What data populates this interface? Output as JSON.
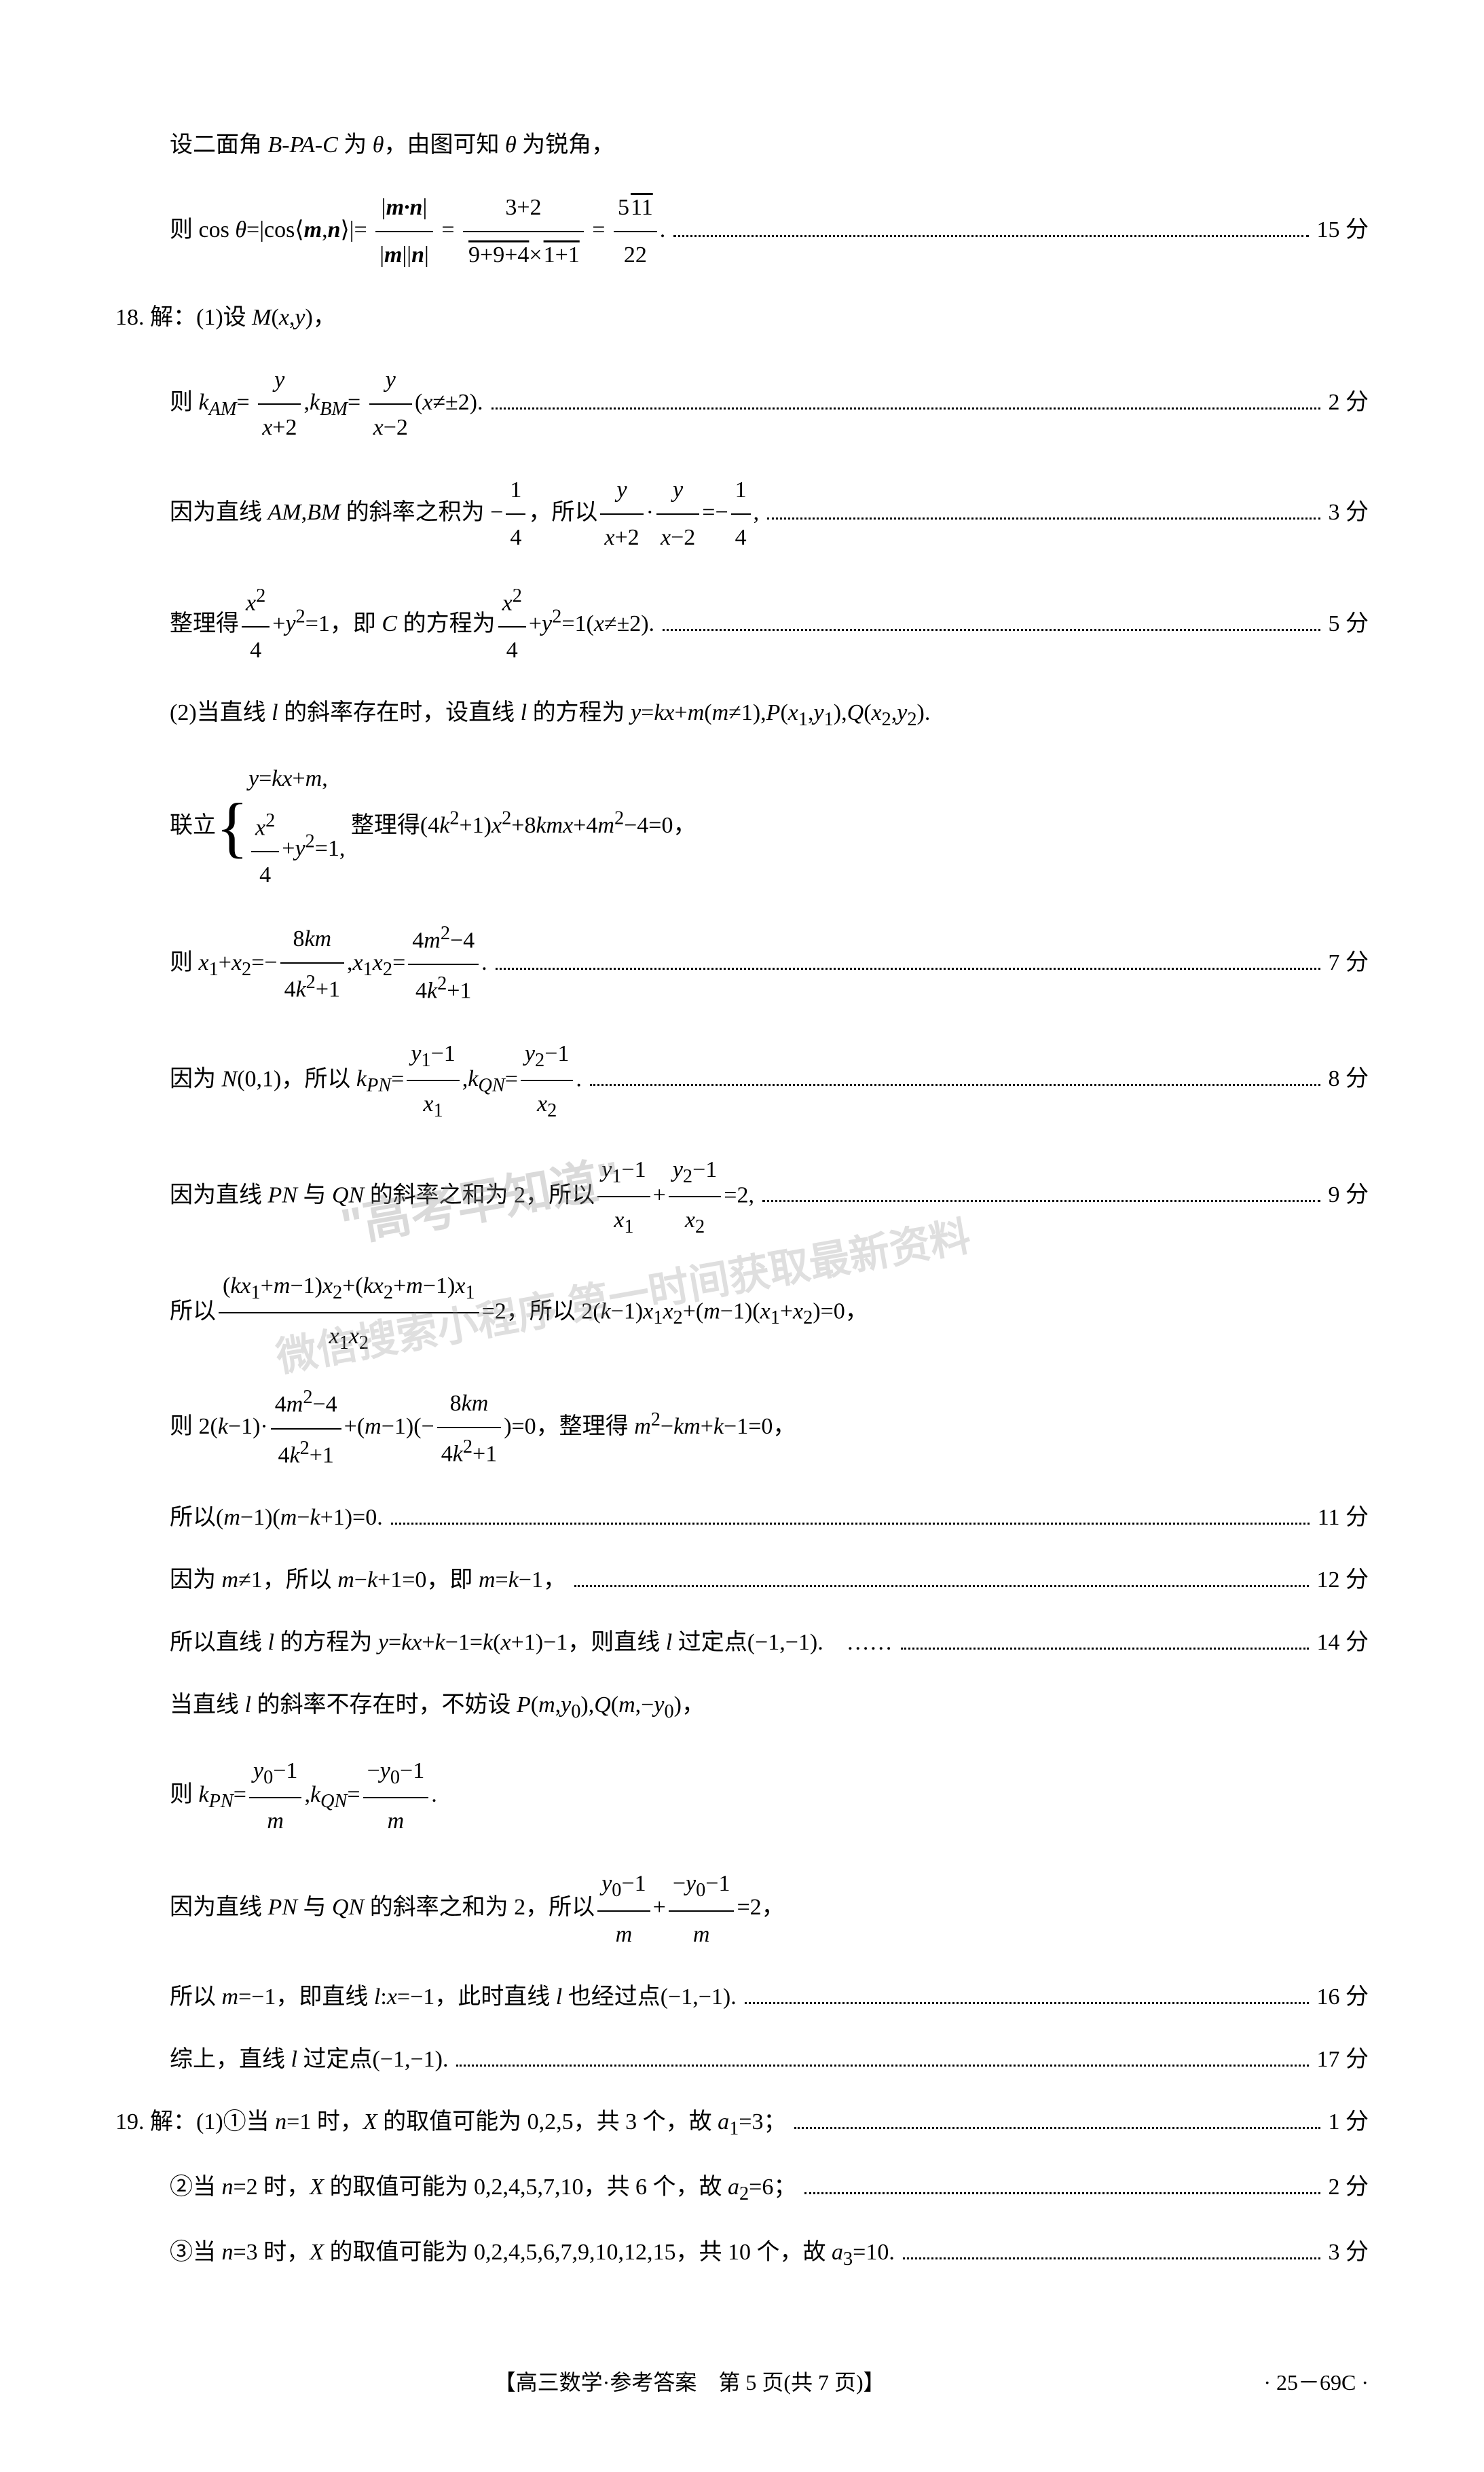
{
  "lines": [
    {
      "indent": 1,
      "content": "设二面角 <i>B-PA-C</i> 为 <i>θ</i>，由图可知 <i>θ</i> 为锐角，",
      "score": ""
    },
    {
      "indent": 1,
      "content": "则 cos <i>θ</i>=|cos⟨<b><i>m</i></b>,<b><i>n</i></b>⟩|= <span class='frac'><span class='num'>|<b><i>m·n</i></b>|</span><span class='den'>|<b><i>m</i></b>||<b><i>n</i></b>|</span></span> = <span class='frac'><span class='num'>3+2</span><span class='den'><span class='sqrt'>9+9+4</span>×<span class='sqrt'>1+1</span></span></span> = <span class='frac'><span class='num'>5<span class='sqrt'>11</span></span><span class='den'>22</span></span>.",
      "score": "15 分"
    },
    {
      "indent": 0,
      "content": "18. 解：(1)设 <i>M</i>(<i>x</i>,<i>y</i>)，",
      "score": ""
    },
    {
      "indent": 1,
      "content": "则 <i>k<sub>AM</sub></i>= <span class='frac'><span class='num'><i>y</i></span><span class='den'><i>x</i>+2</span></span>,<i>k<sub>BM</sub></i>= <span class='frac'><span class='num'><i>y</i></span><span class='den'><i>x</i>−2</span></span>(<i>x</i>≠±2).",
      "score": "2 分"
    },
    {
      "indent": 1,
      "content": "因为直线 <i>AM</i>,<i>BM</i> 的斜率之积为 −<span class='frac'><span class='num'>1</span><span class='den'>4</span></span>，所以<span class='frac'><span class='num'><i>y</i></span><span class='den'><i>x</i>+2</span></span>·<span class='frac'><span class='num'><i>y</i></span><span class='den'><i>x</i>−2</span></span>=−<span class='frac'><span class='num'>1</span><span class='den'>4</span></span>,",
      "score": "3 分"
    },
    {
      "indent": 1,
      "content": "整理得<span class='frac'><span class='num'><i>x</i><sup>2</sup></span><span class='den'>4</span></span>+<i>y</i><sup>2</sup>=1，即 <i>C</i> 的方程为<span class='frac'><span class='num'><i>x</i><sup>2</sup></span><span class='den'>4</span></span>+<i>y</i><sup>2</sup>=1(<i>x</i>≠±2).",
      "score": "5 分"
    },
    {
      "indent": 1,
      "content": "(2)当直线 <i>l</i> 的斜率存在时，设直线 <i>l</i> 的方程为 <i>y</i>=<i>kx</i>+<i>m</i>(<i>m</i>≠1),<i>P</i>(<i>x</i><sub>1</sub>,<i>y</i><sub>1</sub>),<i>Q</i>(<i>x</i><sub>2</sub>,<i>y</i><sub>2</sub>).",
      "score": ""
    },
    {
      "indent": 1,
      "content": "联立<span class='big-brace'>{</span><span class='brace-content'><i>y</i>=<i>kx</i>+<i>m</i>,<br><span class='frac'><span class='num'><i>x</i><sup>2</sup></span><span class='den'>4</span></span>+<i>y</i><sup>2</sup>=1,</span> 整理得(4<i>k</i><sup>2</sup>+1)<i>x</i><sup>2</sup>+8<i>kmx</i>+4<i>m</i><sup>2</sup>−4=0，",
      "score": ""
    },
    {
      "indent": 1,
      "content": "则 <i>x</i><sub>1</sub>+<i>x</i><sub>2</sub>=−<span class='frac'><span class='num'>8<i>km</i></span><span class='den'>4<i>k</i><sup>2</sup>+1</span></span>,<i>x</i><sub>1</sub><i>x</i><sub>2</sub>=<span class='frac'><span class='num'>4<i>m</i><sup>2</sup>−4</span><span class='den'>4<i>k</i><sup>2</sup>+1</span></span>.",
      "score": "7 分"
    },
    {
      "indent": 1,
      "content": "因为 <i>N</i>(0,1)，所以 <i>k<sub>PN</sub></i>=<span class='frac'><span class='num'><i>y</i><sub>1</sub>−1</span><span class='den'><i>x</i><sub>1</sub></span></span>,<i>k<sub>QN</sub></i>=<span class='frac'><span class='num'><i>y</i><sub>2</sub>−1</span><span class='den'><i>x</i><sub>2</sub></span></span>.",
      "score": "8 分"
    },
    {
      "indent": 1,
      "content": "因为直线 <i>PN</i> 与 <i>QN</i> 的斜率之和为 2，所以<span class='frac'><span class='num'><i>y</i><sub>1</sub>−1</span><span class='den'><i>x</i><sub>1</sub></span></span>+<span class='frac'><span class='num'><i>y</i><sub>2</sub>−1</span><span class='den'><i>x</i><sub>2</sub></span></span>=2,",
      "score": "9 分"
    },
    {
      "indent": 1,
      "content": "所以<span class='frac'><span class='num'>(<i>kx</i><sub>1</sub>+<i>m</i>−1)<i>x</i><sub>2</sub>+(<i>kx</i><sub>2</sub>+<i>m</i>−1)<i>x</i><sub>1</sub></span><span class='den'><i>x</i><sub>1</sub><i>x</i><sub>2</sub></span></span>=2，所以 2(<i>k</i>−1)<i>x</i><sub>1</sub><i>x</i><sub>2</sub>+(<i>m</i>−1)(<i>x</i><sub>1</sub>+<i>x</i><sub>2</sub>)=0，",
      "score": ""
    },
    {
      "indent": 1,
      "content": "则 2(<i>k</i>−1)·<span class='frac'><span class='num'>4<i>m</i><sup>2</sup>−4</span><span class='den'>4<i>k</i><sup>2</sup>+1</span></span>+(<i>m</i>−1)(−<span class='frac'><span class='num'>8<i>km</i></span><span class='den'>4<i>k</i><sup>2</sup>+1</span></span>)=0，整理得 <i>m</i><sup>2</sup>−<i>km</i>+<i>k</i>−1=0，",
      "score": ""
    },
    {
      "indent": 1,
      "content": "所以(<i>m</i>−1)(<i>m</i>−<i>k</i>+1)=0.",
      "score": "11 分"
    },
    {
      "indent": 1,
      "content": "因为 <i>m</i>≠1，所以 <i>m</i>−<i>k</i>+1=0，即 <i>m</i>=<i>k</i>−1，",
      "score": "12 分"
    },
    {
      "indent": 1,
      "content": "所以直线 <i>l</i> 的方程为 <i>y</i>=<i>kx</i>+<i>k</i>−1=<i>k</i>(<i>x</i>+1)−1，则直线 <i>l</i> 过定点(−1,−1).　……",
      "score": "14 分"
    },
    {
      "indent": 1,
      "content": "当直线 <i>l</i> 的斜率不存在时，不妨设 <i>P</i>(<i>m</i>,<i>y</i><sub>0</sub>),<i>Q</i>(<i>m</i>,−<i>y</i><sub>0</sub>)，",
      "score": ""
    },
    {
      "indent": 1,
      "content": "则 <i>k<sub>PN</sub></i>=<span class='frac'><span class='num'><i>y</i><sub>0</sub>−1</span><span class='den'><i>m</i></span></span>,<i>k<sub>QN</sub></i>=<span class='frac'><span class='num'>−<i>y</i><sub>0</sub>−1</span><span class='den'><i>m</i></span></span>.",
      "score": ""
    },
    {
      "indent": 1,
      "content": "因为直线 <i>PN</i> 与 <i>QN</i> 的斜率之和为 2，所以<span class='frac'><span class='num'><i>y</i><sub>0</sub>−1</span><span class='den'><i>m</i></span></span>+<span class='frac'><span class='num'>−<i>y</i><sub>0</sub>−1</span><span class='den'><i>m</i></span></span>=2，",
      "score": ""
    },
    {
      "indent": 1,
      "content": "所以 <i>m</i>=−1，即直线 <i>l</i>:<i>x</i>=−1，此时直线 <i>l</i> 也经过点(−1,−1).",
      "score": "16 分"
    },
    {
      "indent": 1,
      "content": "综上，直线 <i>l</i> 过定点(−1,−1).",
      "score": "17 分"
    },
    {
      "indent": 0,
      "content": "19. 解：(1)①当 <i>n</i>=1 时，<i>X</i> 的取值可能为 0,2,5，共 3 个，故 <i>a</i><sub>1</sub>=3；",
      "score": "1 分"
    },
    {
      "indent": 1,
      "content": "②当 <i>n</i>=2 时，<i>X</i> 的取值可能为 0,2,4,5,7,10，共 6 个，故 <i>a</i><sub>2</sub>=6；",
      "score": "2 分"
    },
    {
      "indent": 1,
      "content": "③当 <i>n</i>=3 时，<i>X</i> 的取值可能为 0,2,4,5,6,7,9,10,12,15，共 10 个，故 <i>a</i><sub>3</sub>=10.",
      "score": "3 分"
    }
  ],
  "watermark1": "\"高考早知道\"",
  "watermark2": "微信搜索小程序 第一时间获取最新资料",
  "footer_center": "【高三数学·参考答案　第 5 页(共 7 页)】",
  "footer_right": "· 25－69C ·"
}
